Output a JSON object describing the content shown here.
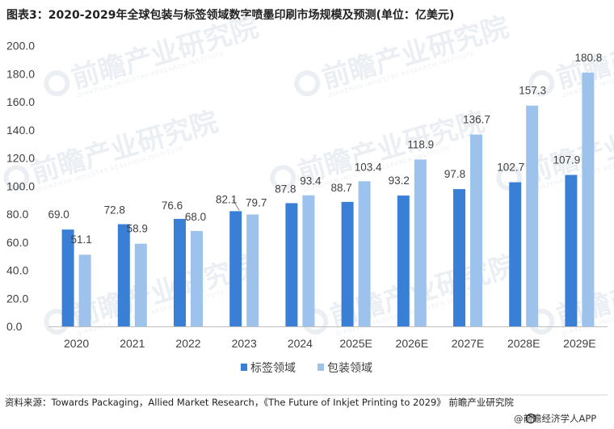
{
  "title": "图表3：2020-2029年全球包装与标签领域数字喷墨印刷市场规模及预测(单位：亿美元)",
  "chart_data": {
    "type": "bar",
    "categories": [
      "2020",
      "2021",
      "2022",
      "2023",
      "2024",
      "2025E",
      "2026E",
      "2027E",
      "2028E",
      "2029E"
    ],
    "series": [
      {
        "name": "标签领域",
        "color": "#3a7fd6",
        "values": [
          69.0,
          72.8,
          76.6,
          82.1,
          87.8,
          88.7,
          93.2,
          97.8,
          102.7,
          107.9
        ]
      },
      {
        "name": "包装领域",
        "color": "#9dc3ec",
        "values": [
          51.1,
          58.9,
          68.0,
          79.7,
          93.4,
          103.4,
          118.9,
          136.7,
          157.3,
          180.8
        ]
      }
    ],
    "ylim": [
      0,
      200
    ],
    "yticks": [
      "0.0",
      "20.0",
      "40.0",
      "60.0",
      "80.0",
      "100.0",
      "120.0",
      "140.0",
      "160.0",
      "180.0",
      "200.0"
    ],
    "xlabel": "",
    "ylabel": "",
    "legend": "bottom-center",
    "grid": false
  },
  "source": "资料来源：Towards Packaging，Allied Market Research，《The Future of Inkjet Printing to 2029》 前瞻产业研究院",
  "brand": "@前瞻经济学人APP",
  "watermark": {
    "text": "前瞻产业研究院",
    "subtext": "QIANZHAN INDUSTRY RESEARCH INSTITUTE"
  },
  "colors": {
    "axis": "#bfbfbf",
    "text": "#404040"
  }
}
